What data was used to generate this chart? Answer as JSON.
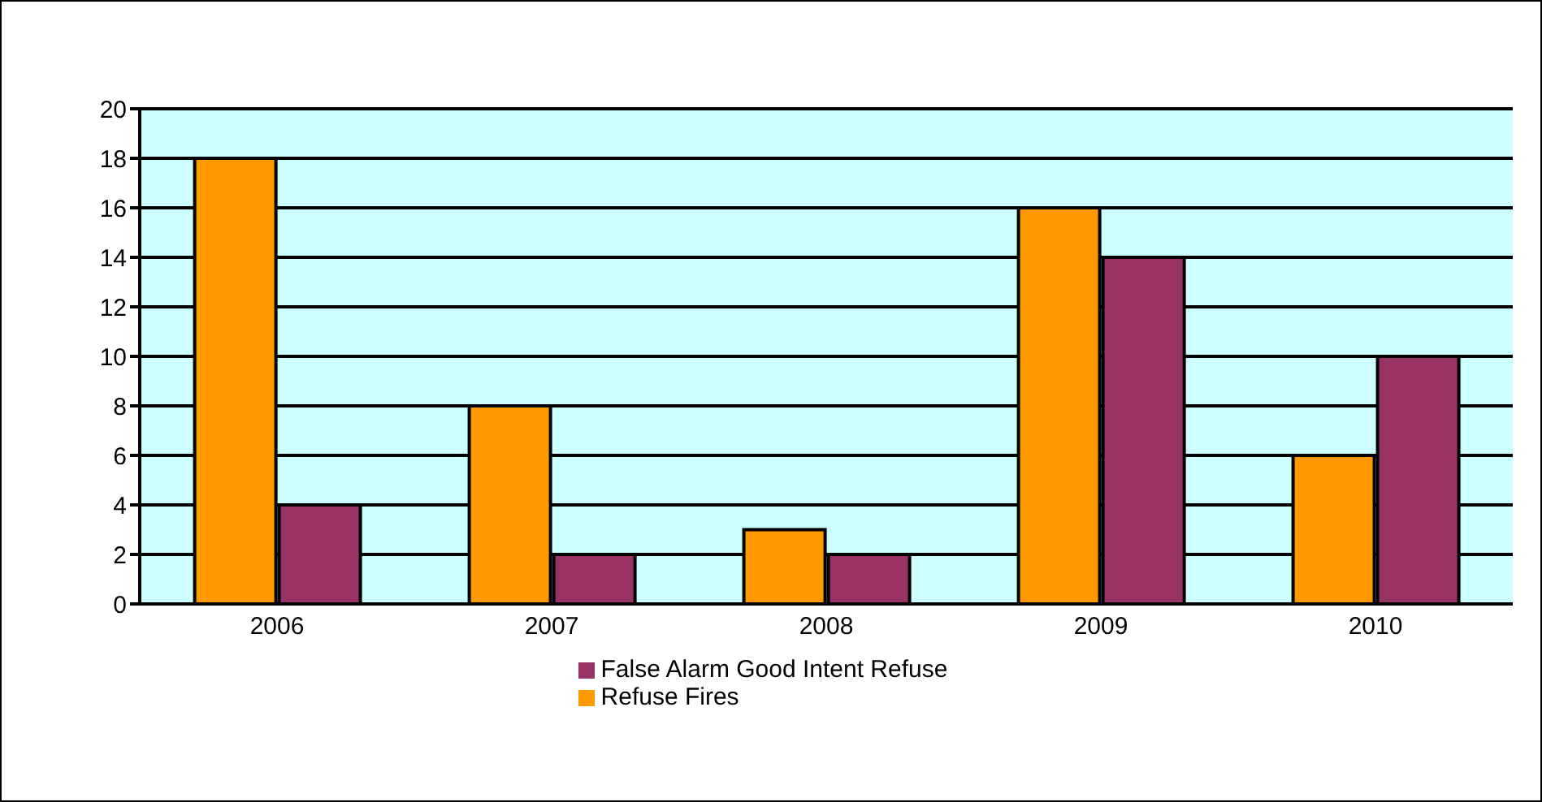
{
  "chart_data": {
    "type": "bar",
    "categories": [
      "2006",
      "2007",
      "2008",
      "2009",
      "2010"
    ],
    "series": [
      {
        "name": "Refuse Fires",
        "color": "#ff9900",
        "values": [
          18,
          8,
          3,
          16,
          6
        ]
      },
      {
        "name": "False Alarm Good Intent Refuse",
        "color": "#993366",
        "values": [
          4,
          2,
          2,
          14,
          10
        ]
      }
    ],
    "ylim": [
      0,
      20
    ],
    "yticks": [
      0,
      2,
      4,
      6,
      8,
      10,
      12,
      14,
      16,
      18,
      20
    ],
    "grid": "y",
    "legend": "bottom"
  }
}
